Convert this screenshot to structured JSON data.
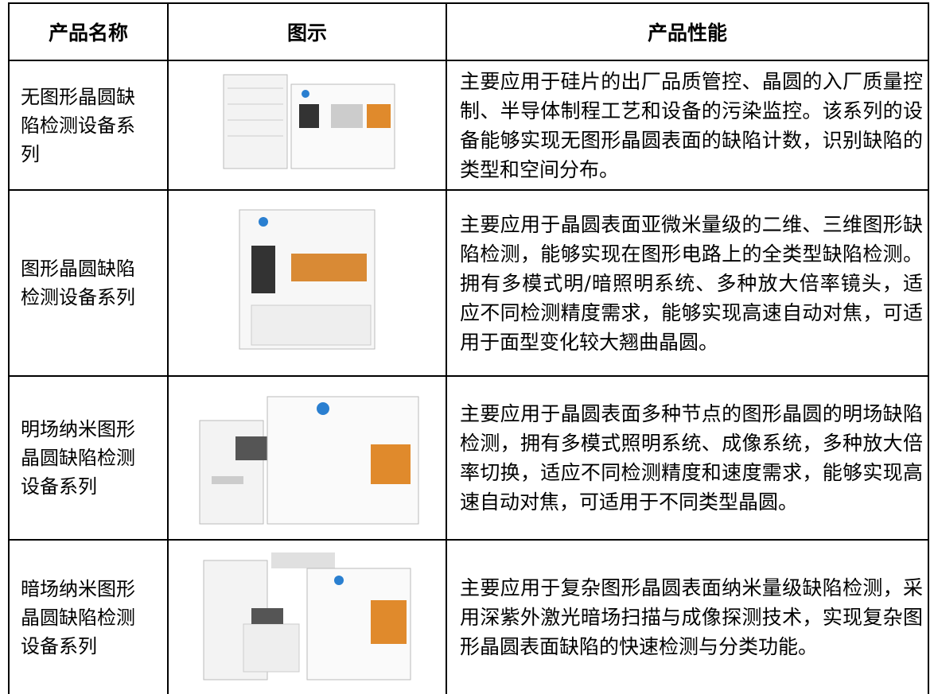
{
  "table": {
    "header": [
      "产品名称",
      "图示",
      "产品性能"
    ],
    "rows": [
      {
        "name": "无图形晶圆缺陷检测设备系列",
        "description": "主要应用于硅片的出厂品质管控、晶圆的入厂质量控制、半导体制程工艺和设备的污染监控。该系列的设备能够实现无图形晶圆表面的缺陷计数，识别缺陷的类型和空间分布。"
      },
      {
        "name": "图形晶圆缺陷检测设备系列",
        "description": "主要应用于晶圆表面亚微米量级的二维、三维图形缺陷检测，能够实现在图形电路上的全类型缺陷检测。拥有多模式明/暗照明系统、多种放大倍率镜头，适应不同检测精度需求，能够实现高速自动对焦，可适用于面型变化较大翘曲晶圆。"
      },
      {
        "name": "明场纳米图形晶圆缺陷检测设备系列",
        "description": "主要应用于晶圆表面多种节点的图形晶圆的明场缺陷检测，拥有多模式照明系统、成像系统，多种放大倍率切换，适应不同检测精度和速度需求，能够实现高速自动对焦，可适用于不同类型晶圆。"
      },
      {
        "name": "暗场纳米图形晶圆缺陷检测设备系列",
        "description": "主要应用于复杂图形晶圆表面纳米量级缺陷检测，采用深紫外激光暗场扫描与成像探测技术，实现复杂图形晶圆表面缺陷的快速检测与分类功能。"
      }
    ]
  }
}
